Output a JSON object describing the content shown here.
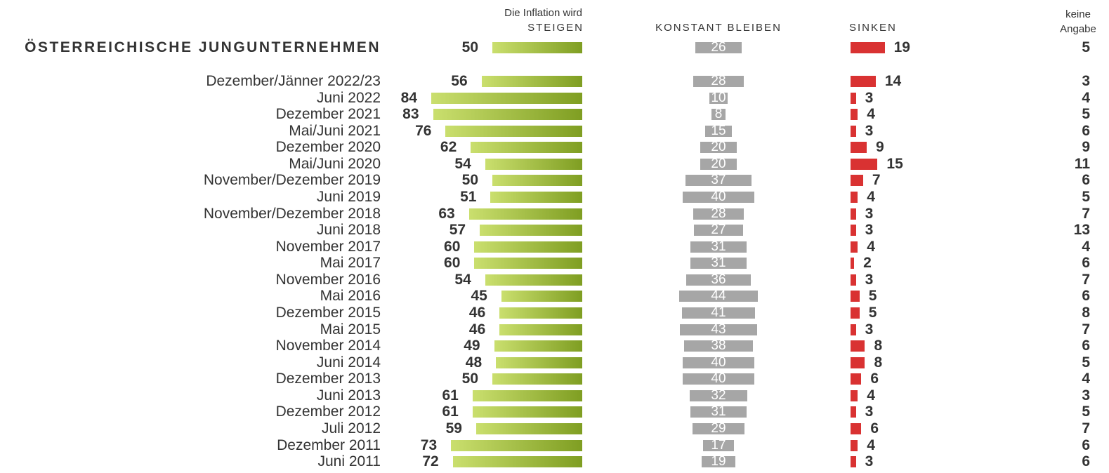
{
  "chart_data": {
    "type": "bar",
    "subtitle": "Die Inflation wird",
    "categories": [
      "ÖSTERREICHISCHE JUNGUNTERNEHMEN",
      "Dezember/Jänner 2022/23",
      "Juni 2022",
      "Dezember 2021",
      "Mai/Juni 2021",
      "Dezember 2020",
      "Mai/Juni 2020",
      "November/Dezember 2019",
      "Juni 2019",
      "November/Dezember 2018",
      "Juni 2018",
      "November 2017",
      "Mai 2017",
      "November 2016",
      "Mai 2016",
      "Dezember 2015",
      "Mai 2015",
      "November 2014",
      "Juni 2014",
      "Dezember 2013",
      "Juni 2013",
      "Dezember 2012",
      "Juli 2012",
      "Dezember 2011",
      "Juni 2011"
    ],
    "series": [
      {
        "name": "STEIGEN",
        "color": "#7f9e22",
        "values": [
          50,
          56,
          84,
          83,
          76,
          62,
          54,
          50,
          51,
          63,
          57,
          60,
          60,
          54,
          45,
          46,
          46,
          49,
          48,
          50,
          61,
          61,
          59,
          73,
          72
        ]
      },
      {
        "name": "KONSTANT BLEIBEN",
        "color": "#a6a6a6",
        "values": [
          26,
          28,
          10,
          8,
          15,
          20,
          20,
          37,
          40,
          28,
          27,
          31,
          31,
          36,
          44,
          41,
          43,
          38,
          40,
          40,
          32,
          31,
          29,
          17,
          19
        ]
      },
      {
        "name": "SINKEN",
        "color": "#d93232",
        "values": [
          19,
          14,
          3,
          4,
          3,
          9,
          15,
          7,
          4,
          3,
          3,
          4,
          2,
          3,
          5,
          5,
          3,
          8,
          8,
          6,
          4,
          3,
          6,
          4,
          3
        ]
      },
      {
        "name": "keine Angabe",
        "values": [
          5,
          3,
          4,
          5,
          6,
          9,
          11,
          6,
          5,
          7,
          13,
          4,
          6,
          7,
          6,
          8,
          7,
          6,
          5,
          4,
          3,
          5,
          7,
          6,
          6
        ]
      }
    ]
  }
}
